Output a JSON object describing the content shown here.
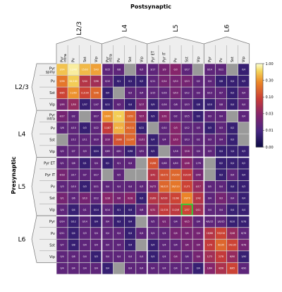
{
  "chart_data": {
    "type": "heatmap",
    "xlabel": "Postsynaptic",
    "ylabel": "Presynaptic",
    "col_groups": [
      {
        "label": "L2/3",
        "cells": [
          "Pyr",
          "Pv",
          "Sst",
          "Vip"
        ],
        "sublabels": [
          "intra",
          "",
          "",
          ""
        ]
      },
      {
        "label": "L4",
        "cells": [
          "Pyr",
          "Pv",
          "Sst",
          "Vip"
        ],
        "sublabels": [
          "intra",
          "",
          "",
          ""
        ]
      },
      {
        "label": "L5",
        "cells": [
          "Pyr ET",
          "Pyr IT",
          "Pv",
          "Sst",
          "Vip"
        ],
        "sublabels": [
          "",
          "",
          "",
          "",
          ""
        ]
      },
      {
        "label": "L6",
        "cells": [
          "Pyr",
          "Pv",
          "Sst",
          "Vip"
        ],
        "sublabels": [
          "",
          "",
          "",
          ""
        ]
      }
    ],
    "row_groups": [
      {
        "label": "L2/3",
        "cells": [
          "Pyr",
          "Pv",
          "Sst",
          "Vip"
        ],
        "sublabels": [
          "spiny",
          "",
          "",
          ""
        ]
      },
      {
        "label": "L4",
        "cells": [
          "Pyr",
          "Pv",
          "Sst",
          "Vip"
        ],
        "sublabels": [
          "intra",
          "",
          "",
          ""
        ]
      },
      {
        "label": "L5",
        "cells": [
          "Pyr ET",
          "Pyr IT",
          "Pv",
          "Sst",
          "Vip"
        ],
        "sublabels": [
          "",
          "",
          "",
          "",
          ""
        ]
      },
      {
        "label": "L6",
        "cells": [
          "Pyr",
          "Pv",
          "Sst",
          "Vip"
        ],
        "sublabels": [
          "",
          "",
          "",
          ""
        ]
      }
    ],
    "colorbar": {
      "ticks": [
        "1.00",
        "0.30",
        "0.10",
        "0.03",
        "0.01",
        "0.00"
      ],
      "range": [
        0,
        1
      ],
      "scale": "log"
    },
    "highlight": {
      "row": 12,
      "col": 11,
      "color": "#33cc33"
    },
    "values": [
      [
        0.55,
        0.85,
        0.5,
        0.4,
        0.02,
        0.02,
        null,
        0.02,
        0.02,
        0.03,
        0.04,
        0.02,
        null,
        0.02,
        0.02,
        null,
        0.01
      ],
      [
        0.25,
        0.6,
        0.08,
        0.06,
        0.02,
        0.01,
        0.01,
        0.01,
        0.02,
        0.03,
        0.03,
        0.03,
        0.02,
        0.02,
        0.01,
        0.01,
        0.01
      ],
      [
        0.12,
        0.35,
        0.12,
        0.2,
        0.01,
        null,
        0.02,
        0.02,
        0.02,
        0.02,
        0.03,
        0.02,
        0.02,
        0.02,
        0.02,
        0.01,
        0.02
      ],
      [
        0.03,
        0.05,
        0.01,
        0.02,
        0.01,
        0.02,
        0.01,
        0.03,
        0.01,
        0.02,
        0.02,
        0.02,
        0.01,
        0.01,
        0.02,
        0.01,
        0.02
      ],
      [
        0.03,
        0.02,
        null,
        0.02,
        0.35,
        0.6,
        0.2,
        0.04,
        0.01,
        0.04,
        0.02,
        0.02,
        0.01,
        0.02,
        0.02,
        null,
        0.02
      ],
      [
        0.02,
        0.02,
        0.01,
        0.02,
        0.1,
        0.45,
        0.2,
        0.01,
        null,
        0.02,
        0.04,
        0.02,
        0.02,
        0.01,
        0.02,
        0.01,
        null
      ],
      [
        null,
        0.02,
        0.02,
        0.02,
        0.03,
        0.15,
        0.2,
        0.03,
        0.01,
        0.02,
        0.04,
        0.02,
        0.02,
        0.02,
        0.02,
        0.01,
        null
      ],
      [
        0.02,
        0.02,
        0.02,
        0.01,
        0.02,
        0.02,
        0.01,
        0.02,
        0.01,
        null,
        0.02,
        0.03,
        0.02,
        0.02,
        0.01,
        0.01,
        0.01
      ],
      [
        0.02,
        0.02,
        0.01,
        0.02,
        0.01,
        0.02,
        0.02,
        null,
        0.15,
        0.02,
        0.02,
        0.04,
        0.02,
        null,
        0.01,
        0.01,
        0.01
      ],
      [
        0.03,
        0.02,
        0.02,
        0.02,
        null,
        0.02,
        null,
        null,
        0.08,
        0.15,
        0.2,
        0.1,
        0.03,
        null,
        0.01,
        0.02,
        0.01
      ],
      [
        0.02,
        0.02,
        0.01,
        0.02,
        0.02,
        0.02,
        0.02,
        0.02,
        0.03,
        0.2,
        0.25,
        0.12,
        0.05,
        0.02,
        0.02,
        0.01,
        0.01
      ],
      [
        0.03,
        0.02,
        0.03,
        0.02,
        0.04,
        0.03,
        0.04,
        0.01,
        0.08,
        0.09,
        0.12,
        0.3,
        0.08,
        0.02,
        0.03,
        0.02,
        0.01
      ],
      [
        0.02,
        0.01,
        0.02,
        0.01,
        0.02,
        0.01,
        0.01,
        0.02,
        0.05,
        0.1,
        0.09,
        0.12,
        0.06,
        0.02,
        0.02,
        0.01,
        0.01
      ],
      [
        0.02,
        0.01,
        0.02,
        0.01,
        0.02,
        0.01,
        0.01,
        null,
        0.02,
        0.03,
        0.02,
        0.04,
        0.02,
        0.02,
        0.02,
        0.01,
        0.01
      ],
      [
        0.02,
        0.01,
        0.02,
        0.02,
        0.02,
        0.02,
        0.01,
        0.02,
        0.02,
        0.02,
        0.03,
        0.03,
        0.03,
        0.08,
        0.12,
        0.05,
        0.02
      ],
      [
        0.02,
        0.01,
        0.02,
        0.02,
        0.02,
        0.02,
        0.01,
        null,
        0.01,
        0.02,
        0.02,
        0.03,
        0.03,
        0.1,
        0.2,
        0.12,
        0.03
      ],
      [
        0.02,
        0.02,
        0.02,
        0.01,
        0.02,
        0.02,
        0.02,
        0.02,
        0.01,
        0.02,
        0.03,
        0.02,
        0.03,
        0.06,
        0.1,
        0.05,
        0.01
      ],
      [
        0.02,
        0.02,
        0.02,
        0.02,
        0.01,
        null,
        0.02,
        0.02,
        0.02,
        0.02,
        0.02,
        0.02,
        0.01,
        0.04,
        0.07,
        0.12,
        0.02
      ]
    ],
    "labels": [
      [
        "3/94",
        "12/48",
        "15/93",
        "5/43",
        "0/15",
        "0/8",
        "",
        "0/3",
        "3/17",
        "3/9",
        "0/3",
        "0/17",
        "",
        "0/14",
        "0/11",
        "",
        "0/4"
      ],
      [
        "5/96",
        "64/180",
        "5/44",
        "5/96",
        "0/10",
        "0/1",
        "0/1",
        "0/2",
        "0/11",
        "0/14",
        "0/10",
        "0/13",
        "0/2",
        "0/4",
        "0/8",
        "0/4",
        "0/3"
      ],
      [
        "4/85",
        "11/60",
        "11/100",
        "5/46",
        "0/4",
        "",
        "0/3",
        "0/4",
        "2/15",
        "0/16",
        "0/10",
        "0/12",
        "0/3",
        "0/13",
        "0/7",
        "0/3",
        "0/4"
      ],
      [
        "1/95",
        "1/50",
        "1/57",
        "1/47",
        "0/11",
        "0/2",
        "0/4",
        "2/17",
        "0/9",
        "0/16",
        "0/8",
        "0/13",
        "0/8",
        "0/10",
        "0/8",
        "0/4",
        "0/4"
      ],
      [
        "4/27",
        "0/2",
        "",
        "0/17",
        "16/60",
        "7/18",
        "12/52",
        "7/27",
        "0/3",
        "2/31",
        "0/2",
        "0/15",
        "0/3",
        "0/3",
        "0/4",
        "",
        "0/4"
      ],
      [
        "0/6",
        "4/10",
        "0/3",
        "0/22",
        "11/87",
        "49/112",
        "20/111",
        "0/22",
        "",
        "0/10",
        "0/3",
        "0/12",
        "0/3",
        "0/3",
        "0/3",
        "0/2",
        ""
      ],
      [
        "",
        "2/12",
        "2/11",
        "0/10",
        "2/10",
        "10/60",
        "11/147",
        "11/31",
        "0/4",
        "0/4",
        "2/10",
        "0/13",
        "0/2",
        "0/3",
        "0/4",
        "0/3",
        ""
      ],
      [
        "0/2",
        "0/7",
        "0/3",
        "0/24",
        "0/65",
        "4/61",
        "0/98",
        "1/91",
        "0/2",
        "",
        "1/18",
        "3/18",
        "0/4",
        "0/3",
        "0/4",
        "1/4",
        "0/3"
      ],
      [
        "0/1",
        "0/8",
        "0/1",
        "0/4",
        "0/1",
        "0/1",
        "0/4",
        "",
        "12/68",
        "0/48",
        "4/40",
        "4/48",
        "1/76",
        "",
        "0/2",
        "0/4",
        "0/2"
      ],
      [
        "4/18",
        "3/17",
        "0/7",
        "0/17",
        "",
        "0/5",
        "",
        "",
        "3/41",
        "16/172",
        "25/250",
        "10/100",
        "0/40",
        "",
        "0/3",
        "0/4",
        "0/4"
      ],
      [
        "0/3",
        "0/10",
        "0/3",
        "0/11",
        "0/4",
        "0/4",
        "0/4",
        "0/3",
        "24/72",
        "36/123",
        "28/110",
        "11/71",
        "4/17",
        "0/5",
        "0/4",
        "0/4",
        "0/3"
      ],
      [
        "0/1",
        "0/6",
        "0/10",
        "0/12",
        "1/18",
        "0/6",
        "0/18",
        "0/3",
        "22/89",
        "8/100",
        "21/98",
        "16/79",
        "2/42",
        "0/4",
        "0/3",
        "0/4",
        "0/4"
      ],
      [
        "0/4",
        "0/4",
        "0/1",
        "0/14",
        "0/14",
        "0/1",
        "0/4",
        "0/6",
        "0/31",
        "12/134",
        "11/2/6",
        "2/37",
        "0/11",
        "0/4",
        "0/4",
        "0/4",
        "0/4"
      ],
      [
        "0/14",
        "0/12",
        "0/14",
        "0/4",
        "0/4",
        "0/3",
        "0/4",
        "",
        "0/5",
        "0/1",
        "0/4",
        "4/15",
        "0/4",
        "4/0/15",
        "1/0/15",
        "0/10",
        "0/78"
      ],
      [
        "0/11",
        "0/4",
        "0/3",
        "0/4",
        "0/4",
        "0/4",
        "0/4",
        "0/4",
        "0/4",
        "0/4",
        "0/4",
        "0/4",
        "0/4",
        "16/68",
        "53/216",
        "2/48",
        "6/78"
      ],
      [
        "0/7",
        "0/8",
        "0/4",
        "0/4",
        "0/4",
        "0/4",
        "0/4",
        "",
        "0/4",
        "0/4",
        "0/4",
        "0/4",
        "0/4",
        "1/79",
        "9/135",
        "14/135",
        "4/78"
      ],
      [
        "0/4",
        "0/8",
        "0/4",
        "0/3",
        "0/4",
        "0/4",
        "0/4",
        "0/4",
        "0/4",
        "0/4",
        "0/4",
        "0/4",
        "0/4",
        "1/73",
        "2/78",
        "6/90",
        "1/90"
      ],
      [
        "0/4",
        "0/4",
        "0/4",
        "0/4",
        "0/4",
        "",
        "0/4",
        "0/4",
        "0/4",
        "0/4",
        "0/4",
        "0/4",
        "0/4",
        "1/64",
        "4/56",
        "8/65",
        "4/90"
      ]
    ]
  }
}
